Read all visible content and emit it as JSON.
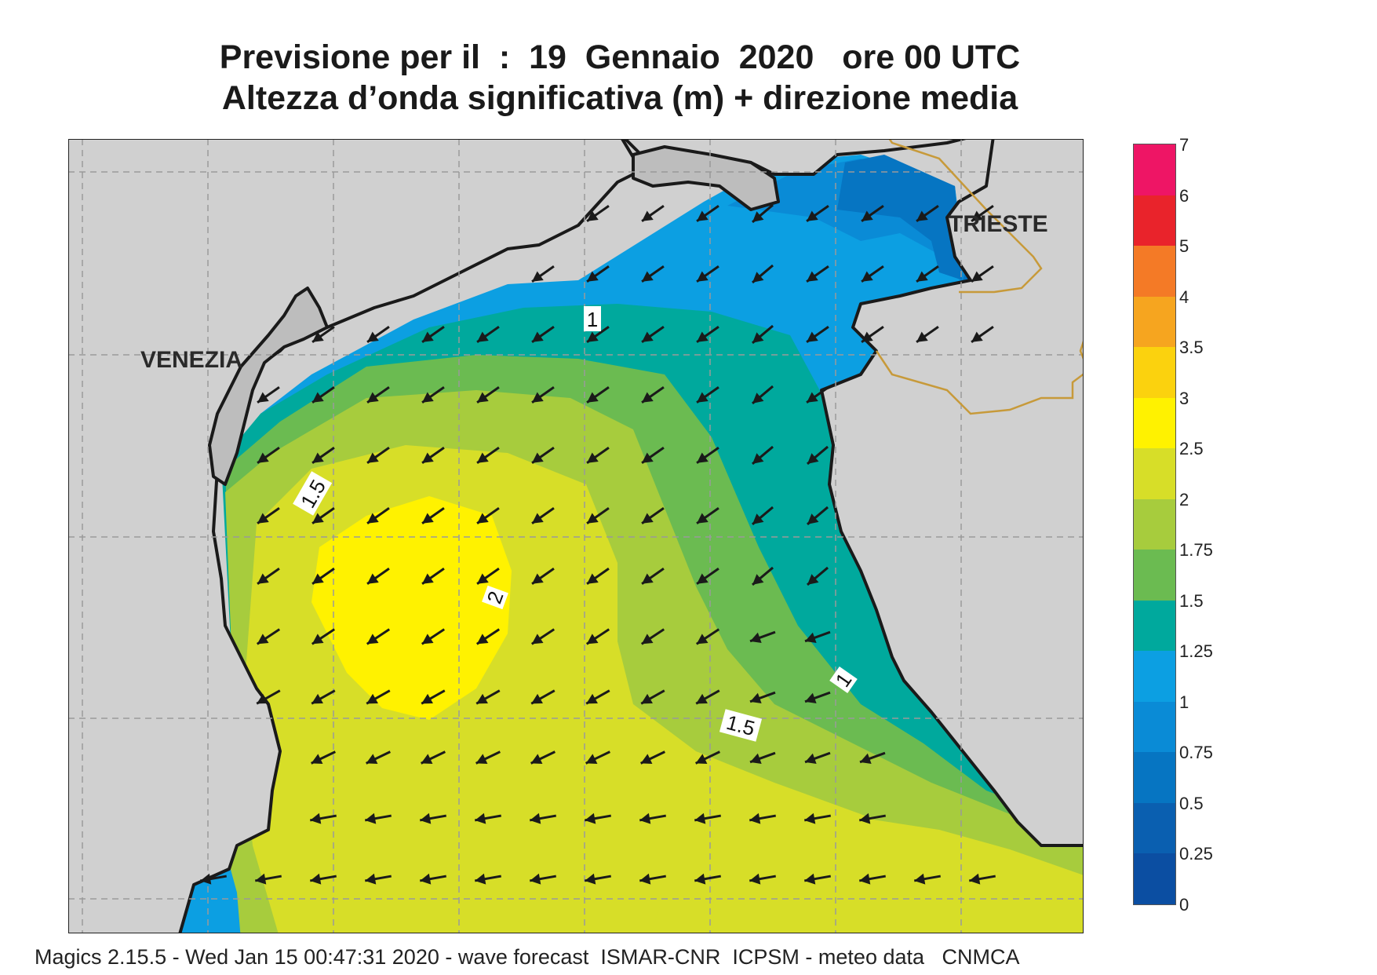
{
  "title": {
    "line1": "Previsione per il  :  19  Gennaio  2020   ore 00 UTC",
    "line2": "Altezza d’onda significativa (m) + direzione media"
  },
  "map": {
    "cities": [
      {
        "key": "venezia",
        "label": "VENEZIA"
      },
      {
        "key": "trieste",
        "label": "TRIESTE"
      }
    ],
    "contour_labels": [
      "1",
      "1.5",
      "2",
      "1",
      "1.5"
    ],
    "wave_direction": "from north-east (arrows pointing south-west / west)"
  },
  "colorbar": {
    "labels": [
      "7",
      "6",
      "5",
      "4",
      "3.5",
      "3",
      "2.5",
      "2",
      "1.75",
      "1.5",
      "1.25",
      "1",
      "0.75",
      "0.5",
      "0.25",
      "0"
    ],
    "colors": [
      "#ee1565",
      "#e9232b",
      "#f47a26",
      "#f6a51f",
      "#fbd20e",
      "#fff200",
      "#d7de28",
      "#a7cc3d",
      "#6bbb51",
      "#00a99d",
      "#0c9fe2",
      "#0a8bd6",
      "#0675c2",
      "#0a5fb0",
      "#0b4ea2"
    ]
  },
  "footer": {
    "text": "Magics 2.15.5 - Wed Jan 15 00:47:31 2020 - wave forecast  ISMAR-CNR  ICPSM - meteo data   CNMCA"
  }
}
